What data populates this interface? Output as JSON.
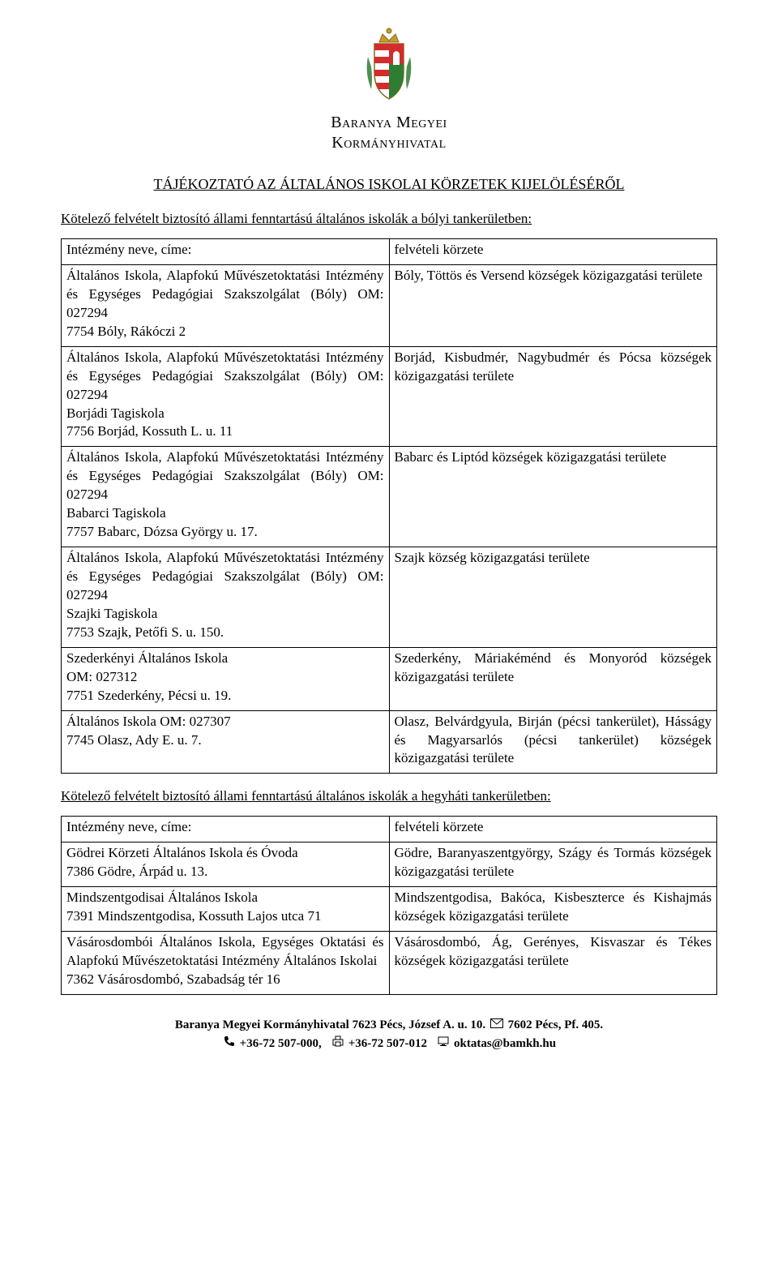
{
  "colors": {
    "text": "#000000",
    "background": "#ffffff",
    "border": "#000000",
    "crest_gold": "#c79a2a",
    "crest_red": "#d22c2c",
    "crest_green": "#2e7d32",
    "crest_white": "#ffffff"
  },
  "typography": {
    "body_font": "Garamond, Times New Roman, serif",
    "body_size_pt": 13,
    "title_size_pt": 14,
    "org_font": "Times New Roman, serif",
    "org_size_pt": 15
  },
  "header": {
    "org_line1": "Baranya Megyei",
    "org_line2": "Kormányhivatal"
  },
  "doc_title": "TÁJÉKOZTATÓ AZ ÁLTALÁNOS ISKOLAI KÖRZETEK KIJELÖLÉSÉRŐL",
  "sections": [
    {
      "intro": "Kötelező felvételt biztosító állami fenntartású általános iskolák a bólyi tankerületben:",
      "header_left": "Intézmény neve, címe:",
      "header_right": "felvételi körzete",
      "rows": [
        {
          "left": "Általános Iskola, Alapfokú Művészetoktatási Intézmény és Egységes Pedagógiai Szakszolgálat (Bóly) OM: 027294\n7754 Bóly, Rákóczi 2",
          "right": "Bóly, Töttös és Versend községek közigazgatási területe"
        },
        {
          "left": "Általános Iskola, Alapfokú Művészetoktatási Intézmény és Egységes Pedagógiai Szakszolgálat (Bóly) OM: 027294\nBorjádi Tagiskola\n7756 Borjád, Kossuth L. u. 11",
          "right": "Borjád, Kisbudmér, Nagybudmér és Pócsa községek közigazgatási területe"
        },
        {
          "left": "Általános Iskola, Alapfokú Művészetoktatási Intézmény és Egységes Pedagógiai Szakszolgálat (Bóly) OM: 027294\nBabarci Tagiskola\n7757 Babarc, Dózsa György u. 17.",
          "right": "Babarc és Liptód községek közigazgatási területe"
        },
        {
          "left": "Általános Iskola, Alapfokú Művészetoktatási Intézmény és Egységes Pedagógiai Szakszolgálat (Bóly) OM: 027294\nSzajki Tagiskola\n7753 Szajk, Petőfi S. u. 150.",
          "right": "Szajk község közigazgatási területe"
        },
        {
          "left": "Szederkényi Általános Iskola\nOM: 027312\n7751 Szederkény, Pécsi u. 19.",
          "right": "Szederkény, Máriakéménd és Monyoród községek közigazgatási területe"
        },
        {
          "left": "Általános Iskola OM: 027307\n7745 Olasz, Ady E. u. 7.",
          "right": "Olasz, Belvárdgyula, Birján (pécsi tankerület), Hásságy és Magyarsarlós (pécsi tankerület) községek közigazgatási területe"
        }
      ]
    },
    {
      "intro": "Kötelező felvételt biztosító állami fenntartású általános iskolák a hegyháti tankerületben:",
      "header_left": "Intézmény neve, címe:",
      "header_right": "felvételi körzete",
      "rows": [
        {
          "left": "Gödrei Körzeti Általános Iskola és Óvoda\n7386 Gödre, Árpád u. 13.",
          "right": "Gödre, Baranyaszentgyörgy, Szágy és Tormás községek közigazgatási területe"
        },
        {
          "left": "Mindszentgodisai Általános Iskola\n7391 Mindszentgodisa, Kossuth Lajos utca 71",
          "right": "Mindszentgodisa, Bakóca, Kisbeszterce és Kishajmás községek közigazgatási területe"
        },
        {
          "left": "Vásárosdombói Általános Iskola, Egységes Oktatási és Alapfokú Művészetoktatási Intézmény Általános Iskolai\n7362 Vásárosdombó, Szabadság tér 16",
          "right": "Vásárosdombó, Ág, Gerényes, Kisvaszar és Tékes községek közigazgatási területe"
        }
      ]
    }
  ],
  "footer": {
    "line1_bold": "Baranya Megyei Kormányhivatal 7623 Pécs, József A. u. 10.",
    "footer_mail_label": "7602 Pécs, Pf. 405.",
    "phone1": "+36-72 507-000,",
    "phone2": "+36-72 507-012",
    "email": "oktatas@bamkh.hu"
  }
}
